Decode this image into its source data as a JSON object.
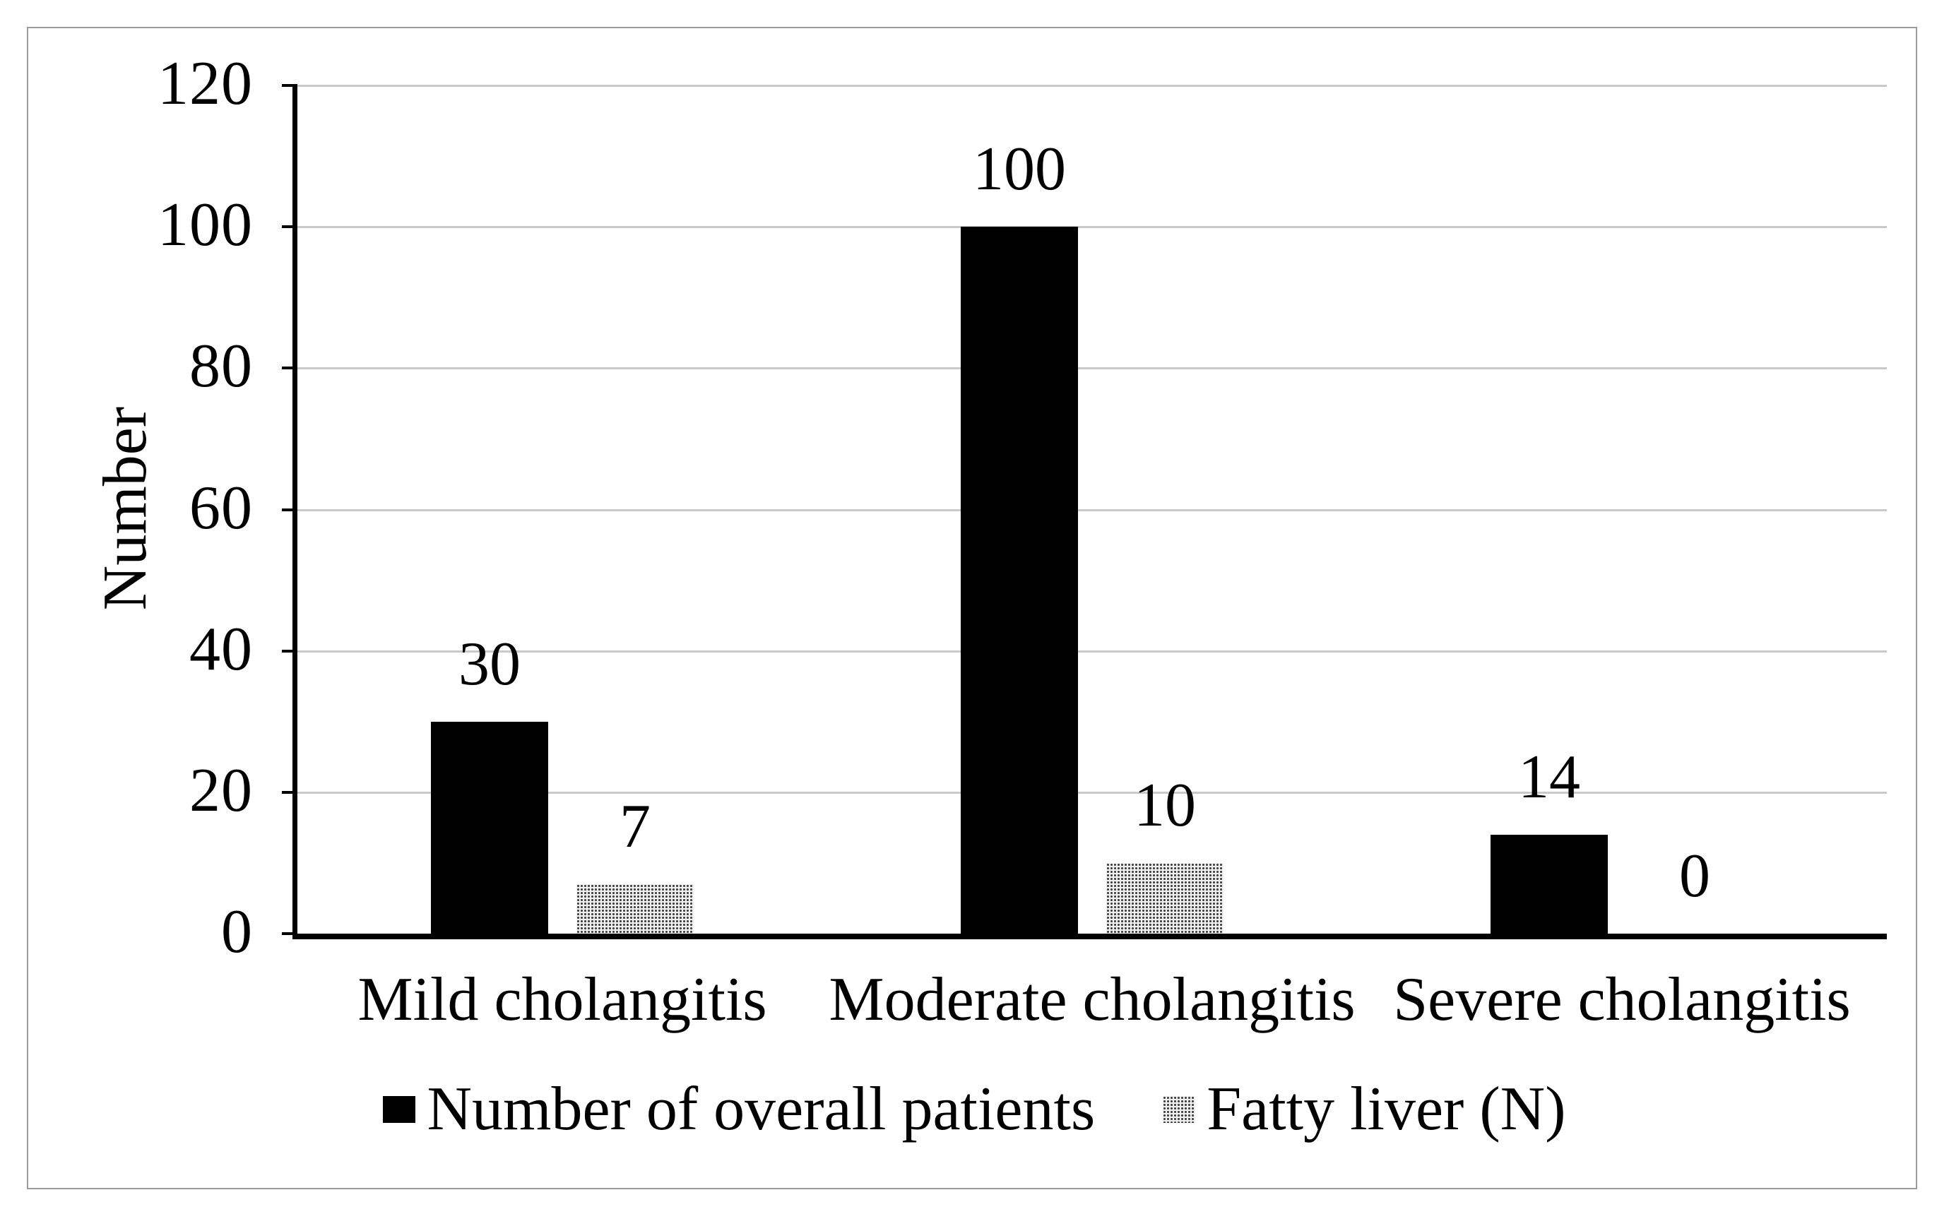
{
  "figure": {
    "background_color": "#ffffff",
    "border_color": "#9b9b9b",
    "bar_black": "#000000",
    "bar_gray": "#c6c6c6",
    "gridline_color": "#c9c9c9"
  },
  "chart_data": {
    "type": "bar",
    "title": "",
    "categories": [
      "Mild cholangitis",
      "Moderate cholangitis",
      "Severe cholangitis"
    ],
    "series": [
      {
        "name": "Number of overall patients",
        "color": "#000000",
        "values": [
          30,
          100,
          14
        ]
      },
      {
        "name": "Fatty liver (N)",
        "color": "#c6c6c6",
        "values": [
          7,
          10,
          0
        ]
      }
    ],
    "data_labels": [
      [
        "30",
        "100",
        "14"
      ],
      [
        "7",
        "10",
        "0"
      ]
    ],
    "xlabel": "",
    "ylabel": "Number",
    "ylim": [
      0,
      120
    ],
    "yticks": [
      0,
      20,
      40,
      60,
      80,
      100,
      120
    ],
    "grid": true,
    "legend_position": "bottom"
  }
}
